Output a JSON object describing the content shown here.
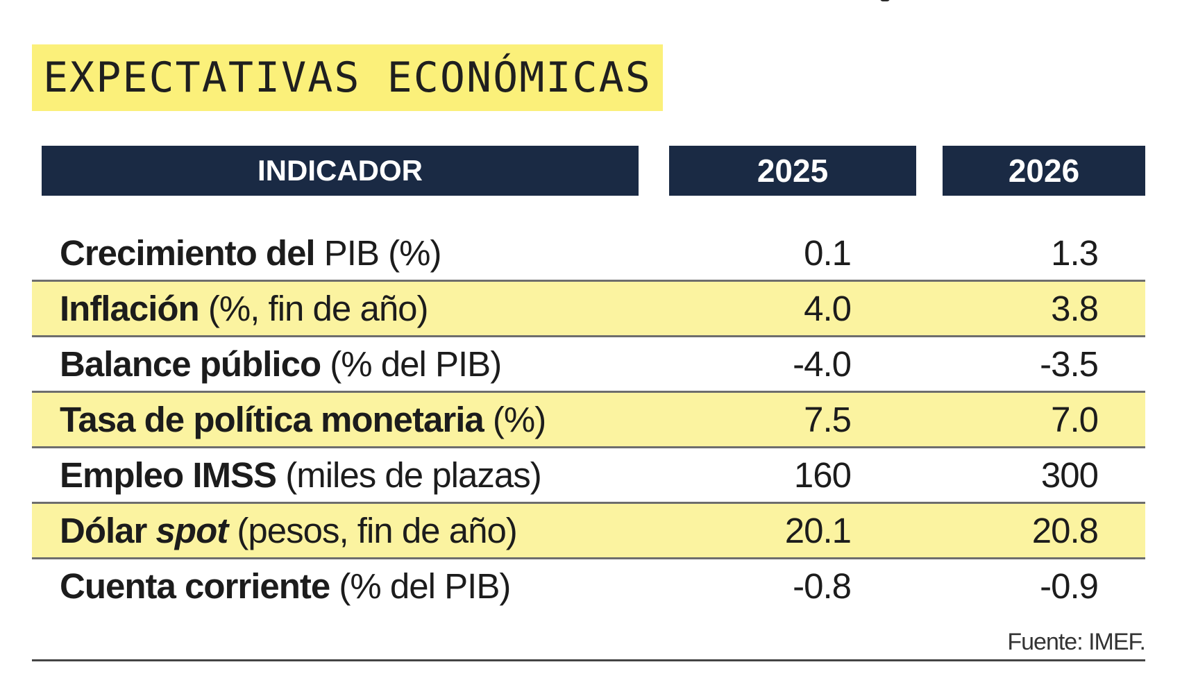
{
  "title": "EXPECTATIVAS ECONÓMICAS",
  "table": {
    "headers": {
      "indicator": "INDICADOR",
      "year1": "2025",
      "year2": "2026"
    },
    "rows": [
      {
        "label_bold": "Crecimiento del",
        "label_rest": " PIB (%)",
        "v2025": "0.1",
        "v2026": "1.3"
      },
      {
        "label_bold": "Inflación",
        "label_rest": " (%, fin de año)",
        "v2025": "4.0",
        "v2026": "3.8"
      },
      {
        "label_bold": "Balance público",
        "label_rest": " (% del PIB)",
        "v2025": "-4.0",
        "v2026": "-3.5"
      },
      {
        "label_bold": "Tasa de política monetaria",
        "label_rest": " (%)",
        "v2025": "7.5",
        "v2026": "7.0"
      },
      {
        "label_bold": "Empleo IMSS",
        "label_rest": " (miles de plazas)",
        "v2025": "160",
        "v2026": "300"
      },
      {
        "label_bold": "Dólar ",
        "label_italic": "spot",
        "label_rest": " (pesos, fin de año)",
        "v2025": "20.1",
        "v2026": "20.8"
      },
      {
        "label_bold": "Cuenta corriente",
        "label_rest": " (% del PIB)",
        "v2025": "-0.8",
        "v2026": "-0.9"
      }
    ]
  },
  "source": "Fuente: IMEF.",
  "colors": {
    "highlight": "#fbf07a",
    "row_alt": "#fbf3a0",
    "header_bg": "#1a2a44",
    "header_text": "#ffffff"
  }
}
